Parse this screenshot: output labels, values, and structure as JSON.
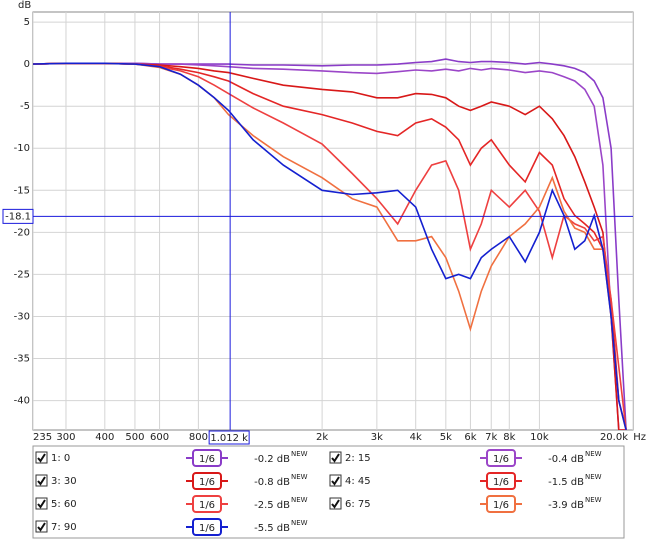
{
  "chart_data": {
    "type": "line",
    "y_label": "dB",
    "x_label": "Hz",
    "log_x": true,
    "grid": true,
    "xlim": [
      235,
      20000
    ],
    "ylim": [
      -43.5,
      6.2
    ],
    "xticks": [
      235,
      300,
      400,
      500,
      600,
      800,
      {
        "value": 2000,
        "label": "2k"
      },
      {
        "value": 3000,
        "label": "3k"
      },
      {
        "value": 4000,
        "label": "4k"
      },
      {
        "value": 5000,
        "label": "5k"
      },
      {
        "value": 6000,
        "label": "6k"
      },
      {
        "value": 7000,
        "label": "7k"
      },
      {
        "value": 8000,
        "label": "8k"
      },
      {
        "value": 10000,
        "label": "10k"
      },
      {
        "value": 20000,
        "label": "20.0k"
      }
    ],
    "yticks": [
      5,
      0,
      -5,
      -10,
      -15,
      -20,
      -25,
      -30,
      -35,
      -40
    ],
    "cursor": {
      "x": {
        "value": 1012,
        "label": "1.012 k"
      },
      "y": -18.1,
      "color": "#1a1adc"
    },
    "x": [
      235,
      300,
      400,
      500,
      600,
      700,
      800,
      900,
      1000,
      1200,
      1500,
      2000,
      2500,
      3000,
      3500,
      4000,
      4500,
      5000,
      5500,
      6000,
      6500,
      7000,
      8000,
      9000,
      10000,
      11000,
      12000,
      13000,
      14000,
      15000,
      16000,
      17000,
      18000,
      19000
    ],
    "series": [
      {
        "name": "1: 0",
        "color": "#8a3cc8",
        "smoothing": "1/6",
        "offset_label": "-0.2 dB",
        "badge": "NEW",
        "values": [
          0,
          0.1,
          0.1,
          0.1,
          0,
          0,
          0,
          0,
          0,
          -0.1,
          -0.1,
          -0.2,
          -0.1,
          -0.1,
          0,
          0.2,
          0.3,
          0.6,
          0.3,
          0.2,
          0.3,
          0.3,
          0.2,
          0,
          0.2,
          0,
          -0.2,
          -0.5,
          -1,
          -2,
          -4,
          -10,
          -28,
          -43.5
        ]
      },
      {
        "name": "2: 15",
        "color": "#9b46c8",
        "smoothing": "1/6",
        "offset_label": "-0.4 dB",
        "badge": "NEW",
        "values": [
          0,
          0.1,
          0.1,
          0.1,
          0,
          0,
          -0.1,
          -0.2,
          -0.3,
          -0.5,
          -0.6,
          -0.8,
          -1,
          -1.1,
          -0.9,
          -0.7,
          -0.8,
          -0.6,
          -0.8,
          -0.5,
          -0.7,
          -0.5,
          -0.7,
          -1,
          -0.8,
          -1,
          -1.5,
          -2,
          -3,
          -5,
          -12,
          -30,
          -43.5,
          -43.5
        ]
      },
      {
        "name": "3: 30",
        "color": "#d81818",
        "smoothing": "1/6",
        "offset_label": "-0.8 dB",
        "badge": "NEW",
        "values": [
          0,
          0.1,
          0.1,
          0,
          -0.1,
          -0.3,
          -0.5,
          -0.8,
          -1,
          -1.7,
          -2.5,
          -3,
          -3.3,
          -4,
          -4,
          -3.5,
          -3.6,
          -4,
          -5,
          -5.5,
          -5,
          -4.5,
          -5,
          -6,
          -5,
          -6.5,
          -8.5,
          -11,
          -14,
          -17,
          -20,
          -30,
          -43.5,
          -43.5
        ]
      },
      {
        "name": "4: 45",
        "color": "#e42626",
        "smoothing": "1/6",
        "offset_label": "-1.5 dB",
        "badge": "NEW",
        "values": [
          0,
          0.1,
          0.1,
          0,
          -0.2,
          -0.6,
          -1,
          -1.5,
          -2,
          -3.5,
          -5,
          -6,
          -7,
          -8,
          -8.5,
          -7,
          -6.5,
          -7.5,
          -9,
          -12,
          -10,
          -9,
          -12,
          -14,
          -10.5,
          -12,
          -16,
          -18,
          -19,
          -20,
          -22,
          -28,
          -40,
          -43.5
        ]
      },
      {
        "name": "5: 60",
        "color": "#ee4040",
        "smoothing": "1/6",
        "offset_label": "-2.5 dB",
        "badge": "NEW",
        "values": [
          0,
          0.1,
          0.1,
          0,
          -0.3,
          -0.8,
          -1.5,
          -2.5,
          -3.5,
          -5.2,
          -7,
          -9.5,
          -13,
          -16,
          -19,
          -15,
          -12,
          -11.5,
          -15,
          -22,
          -19,
          -15,
          -17,
          -15,
          -17.5,
          -23,
          -18,
          -19,
          -19.5,
          -21,
          -20.5,
          -28,
          -36,
          -43.5
        ]
      },
      {
        "name": "6: 75",
        "color": "#f07040",
        "smoothing": "1/6",
        "offset_label": "-3.9 dB",
        "badge": "NEW",
        "values": [
          0,
          0.1,
          0.1,
          0,
          -0.4,
          -1.2,
          -2.5,
          -4,
          -6,
          -8.5,
          -11,
          -13.5,
          -16,
          -17,
          -21,
          -21,
          -20.5,
          -23,
          -27,
          -31.5,
          -27,
          -24,
          -20.5,
          -19,
          -17,
          -13.5,
          -17.5,
          -19.5,
          -20,
          -22,
          -22,
          -30,
          -40,
          -43.5
        ]
      },
      {
        "name": "7: 90",
        "color": "#1420d0",
        "smoothing": "1/6",
        "offset_label": "-5.5 dB",
        "badge": "NEW",
        "values": [
          0,
          0.1,
          0.1,
          0,
          -0.3,
          -1.2,
          -2.5,
          -4,
          -5.5,
          -9,
          -12,
          -15,
          -15.5,
          -15.3,
          -15,
          -17,
          -22,
          -25.5,
          -25,
          -25.5,
          -23,
          -22,
          -20.5,
          -23.5,
          -20,
          -15,
          -18,
          -22,
          -21,
          -18,
          -22,
          -30,
          -40,
          -43.5
        ]
      }
    ]
  }
}
